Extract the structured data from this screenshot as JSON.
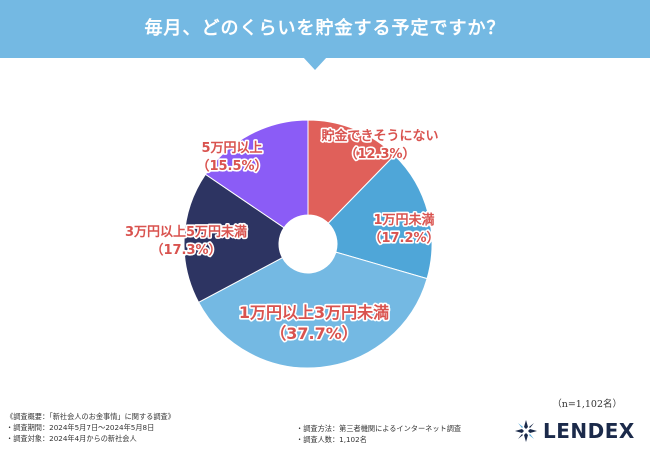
{
  "header": {
    "title": "毎月、どのくらいを貯金する予定ですか？"
  },
  "chart_data": {
    "type": "pie",
    "title": "毎月、どのくらいを貯金する予定ですか？",
    "slices": [
      {
        "name": "貯金できそうにない",
        "percent_label": "（12.3%）",
        "value": 12.3,
        "color": "#e0605a"
      },
      {
        "name": "1万円未満",
        "percent_label": "（17.2%）",
        "value": 17.2,
        "color": "#4fa6d8"
      },
      {
        "name": "1万円以上3万円未満",
        "percent_label": "（37.7%）",
        "value": 37.7,
        "color": "#74b9e3"
      },
      {
        "name": "3万円以上5万円未満",
        "percent_label": "（17.3%）",
        "value": 17.3,
        "color": "#2d3462"
      },
      {
        "name": "5万円以上",
        "percent_label": "（15.5%）",
        "value": 15.5,
        "color": "#8b5cf6"
      }
    ]
  },
  "sample_size": "（n=1,102名）",
  "notes": {
    "overview": "《調査概要：「新社会人のお金事情」に関する調査》",
    "period": "・調査期間：2024年5月7日〜2024年5月8日",
    "subjects": "・調査対象：2024年4月からの新社会人",
    "method": "・調査方法：第三者機関によるインターネット調査",
    "count": "・調査人数：1,102名"
  },
  "logo": {
    "text": "LENDEX",
    "icon": "lendex-logo-icon"
  }
}
